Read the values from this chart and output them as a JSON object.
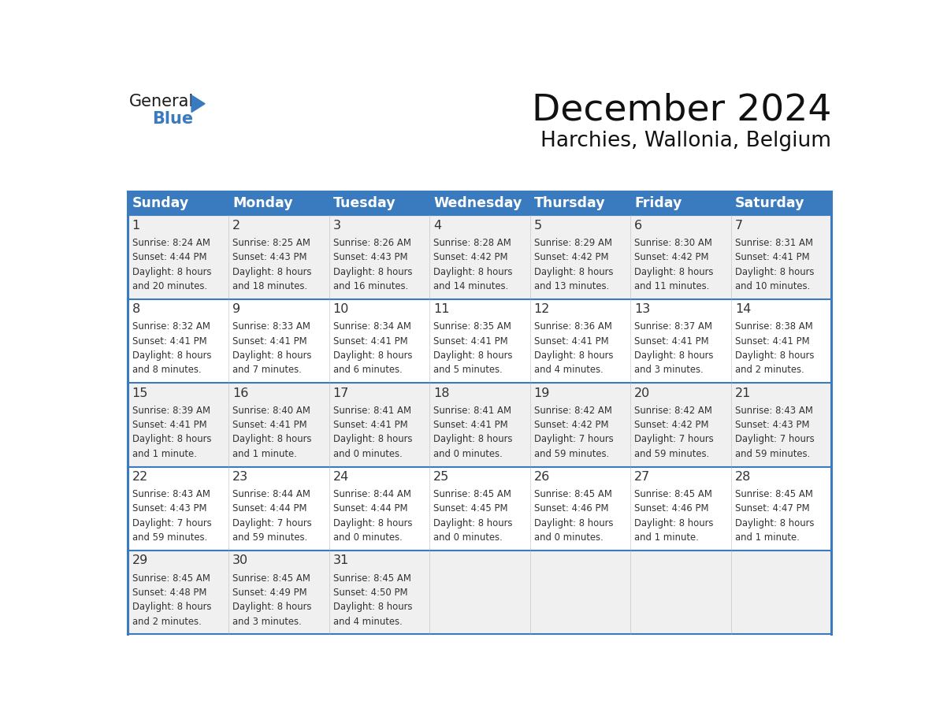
{
  "title": "December 2024",
  "subtitle": "Harchies, Wallonia, Belgium",
  "header_bg_color": "#3a7abf",
  "header_text_color": "#ffffff",
  "row_bg_light": "#f0f0f0",
  "row_bg_white": "#ffffff",
  "day_names": [
    "Sunday",
    "Monday",
    "Tuesday",
    "Wednesday",
    "Thursday",
    "Friday",
    "Saturday"
  ],
  "days": [
    {
      "day": 1,
      "col": 0,
      "row": 0,
      "sunrise": "8:24 AM",
      "sunset": "4:44 PM",
      "daylight_line1": "8 hours",
      "daylight_line2": "and 20 minutes."
    },
    {
      "day": 2,
      "col": 1,
      "row": 0,
      "sunrise": "8:25 AM",
      "sunset": "4:43 PM",
      "daylight_line1": "8 hours",
      "daylight_line2": "and 18 minutes."
    },
    {
      "day": 3,
      "col": 2,
      "row": 0,
      "sunrise": "8:26 AM",
      "sunset": "4:43 PM",
      "daylight_line1": "8 hours",
      "daylight_line2": "and 16 minutes."
    },
    {
      "day": 4,
      "col": 3,
      "row": 0,
      "sunrise": "8:28 AM",
      "sunset": "4:42 PM",
      "daylight_line1": "8 hours",
      "daylight_line2": "and 14 minutes."
    },
    {
      "day": 5,
      "col": 4,
      "row": 0,
      "sunrise": "8:29 AM",
      "sunset": "4:42 PM",
      "daylight_line1": "8 hours",
      "daylight_line2": "and 13 minutes."
    },
    {
      "day": 6,
      "col": 5,
      "row": 0,
      "sunrise": "8:30 AM",
      "sunset": "4:42 PM",
      "daylight_line1": "8 hours",
      "daylight_line2": "and 11 minutes."
    },
    {
      "day": 7,
      "col": 6,
      "row": 0,
      "sunrise": "8:31 AM",
      "sunset": "4:41 PM",
      "daylight_line1": "8 hours",
      "daylight_line2": "and 10 minutes."
    },
    {
      "day": 8,
      "col": 0,
      "row": 1,
      "sunrise": "8:32 AM",
      "sunset": "4:41 PM",
      "daylight_line1": "8 hours",
      "daylight_line2": "and 8 minutes."
    },
    {
      "day": 9,
      "col": 1,
      "row": 1,
      "sunrise": "8:33 AM",
      "sunset": "4:41 PM",
      "daylight_line1": "8 hours",
      "daylight_line2": "and 7 minutes."
    },
    {
      "day": 10,
      "col": 2,
      "row": 1,
      "sunrise": "8:34 AM",
      "sunset": "4:41 PM",
      "daylight_line1": "8 hours",
      "daylight_line2": "and 6 minutes."
    },
    {
      "day": 11,
      "col": 3,
      "row": 1,
      "sunrise": "8:35 AM",
      "sunset": "4:41 PM",
      "daylight_line1": "8 hours",
      "daylight_line2": "and 5 minutes."
    },
    {
      "day": 12,
      "col": 4,
      "row": 1,
      "sunrise": "8:36 AM",
      "sunset": "4:41 PM",
      "daylight_line1": "8 hours",
      "daylight_line2": "and 4 minutes."
    },
    {
      "day": 13,
      "col": 5,
      "row": 1,
      "sunrise": "8:37 AM",
      "sunset": "4:41 PM",
      "daylight_line1": "8 hours",
      "daylight_line2": "and 3 minutes."
    },
    {
      "day": 14,
      "col": 6,
      "row": 1,
      "sunrise": "8:38 AM",
      "sunset": "4:41 PM",
      "daylight_line1": "8 hours",
      "daylight_line2": "and 2 minutes."
    },
    {
      "day": 15,
      "col": 0,
      "row": 2,
      "sunrise": "8:39 AM",
      "sunset": "4:41 PM",
      "daylight_line1": "8 hours",
      "daylight_line2": "and 1 minute."
    },
    {
      "day": 16,
      "col": 1,
      "row": 2,
      "sunrise": "8:40 AM",
      "sunset": "4:41 PM",
      "daylight_line1": "8 hours",
      "daylight_line2": "and 1 minute."
    },
    {
      "day": 17,
      "col": 2,
      "row": 2,
      "sunrise": "8:41 AM",
      "sunset": "4:41 PM",
      "daylight_line1": "8 hours",
      "daylight_line2": "and 0 minutes."
    },
    {
      "day": 18,
      "col": 3,
      "row": 2,
      "sunrise": "8:41 AM",
      "sunset": "4:41 PM",
      "daylight_line1": "8 hours",
      "daylight_line2": "and 0 minutes."
    },
    {
      "day": 19,
      "col": 4,
      "row": 2,
      "sunrise": "8:42 AM",
      "sunset": "4:42 PM",
      "daylight_line1": "7 hours",
      "daylight_line2": "and 59 minutes."
    },
    {
      "day": 20,
      "col": 5,
      "row": 2,
      "sunrise": "8:42 AM",
      "sunset": "4:42 PM",
      "daylight_line1": "7 hours",
      "daylight_line2": "and 59 minutes."
    },
    {
      "day": 21,
      "col": 6,
      "row": 2,
      "sunrise": "8:43 AM",
      "sunset": "4:43 PM",
      "daylight_line1": "7 hours",
      "daylight_line2": "and 59 minutes."
    },
    {
      "day": 22,
      "col": 0,
      "row": 3,
      "sunrise": "8:43 AM",
      "sunset": "4:43 PM",
      "daylight_line1": "7 hours",
      "daylight_line2": "and 59 minutes."
    },
    {
      "day": 23,
      "col": 1,
      "row": 3,
      "sunrise": "8:44 AM",
      "sunset": "4:44 PM",
      "daylight_line1": "7 hours",
      "daylight_line2": "and 59 minutes."
    },
    {
      "day": 24,
      "col": 2,
      "row": 3,
      "sunrise": "8:44 AM",
      "sunset": "4:44 PM",
      "daylight_line1": "8 hours",
      "daylight_line2": "and 0 minutes."
    },
    {
      "day": 25,
      "col": 3,
      "row": 3,
      "sunrise": "8:45 AM",
      "sunset": "4:45 PM",
      "daylight_line1": "8 hours",
      "daylight_line2": "and 0 minutes."
    },
    {
      "day": 26,
      "col": 4,
      "row": 3,
      "sunrise": "8:45 AM",
      "sunset": "4:46 PM",
      "daylight_line1": "8 hours",
      "daylight_line2": "and 0 minutes."
    },
    {
      "day": 27,
      "col": 5,
      "row": 3,
      "sunrise": "8:45 AM",
      "sunset": "4:46 PM",
      "daylight_line1": "8 hours",
      "daylight_line2": "and 1 minute."
    },
    {
      "day": 28,
      "col": 6,
      "row": 3,
      "sunrise": "8:45 AM",
      "sunset": "4:47 PM",
      "daylight_line1": "8 hours",
      "daylight_line2": "and 1 minute."
    },
    {
      "day": 29,
      "col": 0,
      "row": 4,
      "sunrise": "8:45 AM",
      "sunset": "4:48 PM",
      "daylight_line1": "8 hours",
      "daylight_line2": "and 2 minutes."
    },
    {
      "day": 30,
      "col": 1,
      "row": 4,
      "sunrise": "8:45 AM",
      "sunset": "4:49 PM",
      "daylight_line1": "8 hours",
      "daylight_line2": "and 3 minutes."
    },
    {
      "day": 31,
      "col": 2,
      "row": 4,
      "sunrise": "8:45 AM",
      "sunset": "4:50 PM",
      "daylight_line1": "8 hours",
      "daylight_line2": "and 4 minutes."
    }
  ],
  "logo_general_color": "#1a1a1a",
  "logo_blue_color": "#3a7abf",
  "border_color": "#3a7abf",
  "cell_border_color": "#aaaaaa",
  "text_color": "#333333"
}
